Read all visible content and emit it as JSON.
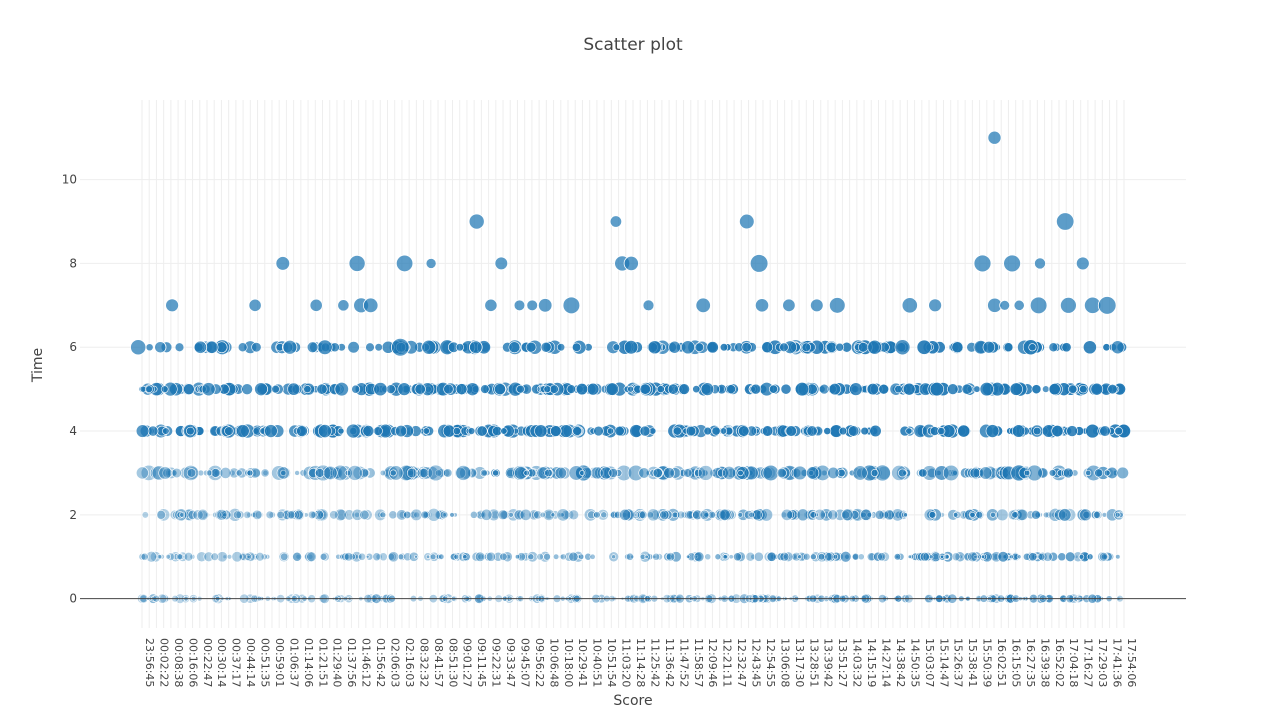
{
  "chart_data": {
    "type": "scatter",
    "title": "Scatter plot",
    "xlabel": "Score",
    "ylabel": "Time",
    "ylim": [
      -0.7,
      11.9
    ],
    "yticks": [
      0,
      2,
      4,
      6,
      8,
      10
    ],
    "grid": true,
    "color": "#1f77b4",
    "x_tick_labels": [
      "23:56:45",
      "00:02:22",
      "00:08:38",
      "00:16:06",
      "00:22:47",
      "00:30:14",
      "00:37:17",
      "00:44:14",
      "00:51:35",
      "00:59:01",
      "01:06:37",
      "01:14:06",
      "01:21:51",
      "01:29:40",
      "01:37:56",
      "01:46:12",
      "01:56:42",
      "02:06:03",
      "02:16:03",
      "08:32:32",
      "08:41:57",
      "08:51:30",
      "09:01:27",
      "09:11:45",
      "09:22:31",
      "09:33:47",
      "09:45:07",
      "09:56:22",
      "10:06:48",
      "10:18:00",
      "10:29:41",
      "10:40:51",
      "10:51:54",
      "11:03:20",
      "11:14:28",
      "11:25:42",
      "11:36:42",
      "11:47:52",
      "11:58:57",
      "12:09:46",
      "12:21:11",
      "12:32:47",
      "12:43:45",
      "12:54:55",
      "13:06:08",
      "13:17:30",
      "13:28:51",
      "13:39:42",
      "13:51:27",
      "14:03:32",
      "14:15:19",
      "14:27:14",
      "14:38:42",
      "14:50:35",
      "15:03:07",
      "15:14:47",
      "15:26:37",
      "15:38:41",
      "15:50:39",
      "16:02:51",
      "16:15:05",
      "16:27:35",
      "16:39:38",
      "16:52:02",
      "17:04:18",
      "17:16:27",
      "17:29:03",
      "17:41:36",
      "17:54:06"
    ],
    "y_levels": [
      0,
      1,
      2,
      3,
      4,
      5,
      6
    ],
    "series": [
      {
        "points": [
          {
            "x": "23:56:45",
            "y": 6
          },
          {
            "x": "00:02:22",
            "y": 6
          },
          {
            "x": "00:08:38",
            "y": 7
          },
          {
            "x": "00:22:47",
            "y": 6
          },
          {
            "x": "00:51:35",
            "y": 7
          },
          {
            "x": "01:06:37",
            "y": 8
          },
          {
            "x": "01:06:37",
            "y": 6
          },
          {
            "x": "01:21:51",
            "y": 7
          },
          {
            "x": "01:21:51",
            "y": 6
          },
          {
            "x": "01:37:56",
            "y": 7
          },
          {
            "x": "01:46:12",
            "y": 8
          },
          {
            "x": "01:46:12",
            "y": 7
          },
          {
            "x": "01:56:42",
            "y": 7
          },
          {
            "x": "02:16:03",
            "y": 8
          },
          {
            "x": "02:16:03",
            "y": 6
          },
          {
            "x": "08:41:57",
            "y": 8
          },
          {
            "x": "08:41:57",
            "y": 6
          },
          {
            "x": "09:11:45",
            "y": 9
          },
          {
            "x": "09:11:45",
            "y": 6
          },
          {
            "x": "09:22:31",
            "y": 7
          },
          {
            "x": "09:33:47",
            "y": 8
          },
          {
            "x": "09:45:07",
            "y": 7
          },
          {
            "x": "09:56:22",
            "y": 7
          },
          {
            "x": "10:06:48",
            "y": 7
          },
          {
            "x": "10:29:41",
            "y": 7
          },
          {
            "x": "11:03:20",
            "y": 9
          },
          {
            "x": "11:03:20",
            "y": 8
          },
          {
            "x": "11:14:28",
            "y": 8
          },
          {
            "x": "11:25:42",
            "y": 7
          },
          {
            "x": "12:09:46",
            "y": 7
          },
          {
            "x": "12:43:45",
            "y": 9
          },
          {
            "x": "12:54:55",
            "y": 8
          },
          {
            "x": "12:54:55",
            "y": 7
          },
          {
            "x": "13:17:30",
            "y": 7
          },
          {
            "x": "13:39:42",
            "y": 7
          },
          {
            "x": "13:51:27",
            "y": 7
          },
          {
            "x": "14:50:35",
            "y": 7
          },
          {
            "x": "15:14:47",
            "y": 7
          },
          {
            "x": "16:02:51",
            "y": 11
          },
          {
            "x": "15:50:39",
            "y": 8
          },
          {
            "x": "16:02:51",
            "y": 7
          },
          {
            "x": "16:15:05",
            "y": 8
          },
          {
            "x": "16:15:05",
            "y": 7
          },
          {
            "x": "16:39:38",
            "y": 8
          },
          {
            "x": "16:27:35",
            "y": 7
          },
          {
            "x": "16:39:38",
            "y": 7
          },
          {
            "x": "17:04:18",
            "y": 9
          },
          {
            "x": "17:04:18",
            "y": 7
          },
          {
            "x": "17:16:27",
            "y": 8
          },
          {
            "x": "17:29:03",
            "y": 7
          },
          {
            "x": "17:41:36",
            "y": 7
          }
        ]
      }
    ]
  }
}
